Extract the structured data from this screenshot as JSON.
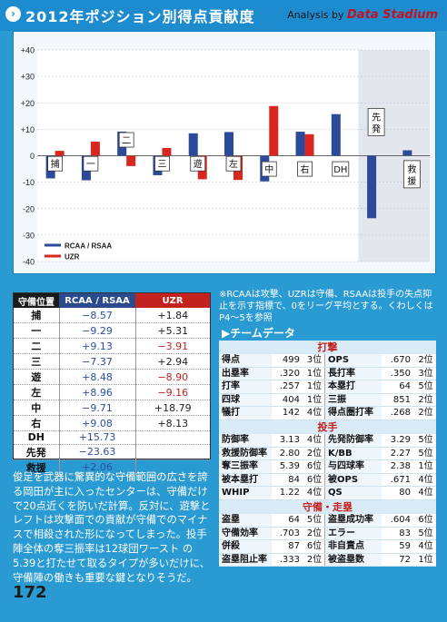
{
  "header": {
    "title": "2012年ポジション別得点貢献度",
    "brand_prefix": "Analysis by",
    "brand_name": "Data Stadium"
  },
  "chart_data": {
    "type": "bar",
    "categories": [
      "捕",
      "一",
      "二",
      "三",
      "遊",
      "左",
      "中",
      "右",
      "DH",
      "先発",
      "救援"
    ],
    "series": [
      {
        "name": "RCAA / RSAA",
        "color": "#2c4a9a",
        "values": [
          -8.57,
          -9.29,
          9.13,
          -7.37,
          8.48,
          8.96,
          -9.71,
          9.08,
          15.73,
          -23.63,
          2.06
        ]
      },
      {
        "name": "UZR",
        "color": "#d8271f",
        "values": [
          1.84,
          5.31,
          -3.91,
          2.94,
          -8.9,
          -9.16,
          18.79,
          8.13,
          null,
          null,
          null
        ]
      }
    ],
    "ylim": [
      -40,
      40
    ],
    "yticks": [
      "+40",
      "+30",
      "+20",
      "+10",
      "0",
      "-10",
      "-20",
      "-30",
      "-40"
    ],
    "grid": true,
    "legend": "bottom-left"
  },
  "table": {
    "headers": [
      "守備位置",
      "RCAA / RSAA",
      "UZR"
    ],
    "rows": [
      {
        "pos": "捕",
        "r": "−8.57",
        "u": "+1.84",
        "rneg": true,
        "uneg": false
      },
      {
        "pos": "一",
        "r": "−9.29",
        "u": "+5.31",
        "rneg": true,
        "uneg": false
      },
      {
        "pos": "二",
        "r": "+9.13",
        "u": "−3.91",
        "rneg": false,
        "uneg": true
      },
      {
        "pos": "三",
        "r": "−7.37",
        "u": "+2.94",
        "rneg": true,
        "uneg": false
      },
      {
        "pos": "遊",
        "r": "+8.48",
        "u": "−8.90",
        "rneg": false,
        "uneg": true
      },
      {
        "pos": "左",
        "r": "+8.96",
        "u": "−9.16",
        "rneg": false,
        "uneg": true
      },
      {
        "pos": "中",
        "r": "−9.71",
        "u": "+18.79",
        "rneg": true,
        "uneg": false
      },
      {
        "pos": "右",
        "r": "+9.08",
        "u": "+8.13",
        "rneg": false,
        "uneg": false
      },
      {
        "pos": "DH",
        "r": "+15.73",
        "u": "",
        "rneg": false,
        "uneg": false
      },
      {
        "pos": "先発",
        "r": "−23.63",
        "u": "",
        "rneg": true,
        "uneg": false
      },
      {
        "pos": "救援",
        "r": "+2.06",
        "u": "",
        "rneg": false,
        "uneg": false
      }
    ]
  },
  "note": "※RCAAは攻撃、UZRは守備、RSAAは投手の失点抑止を示す指標で、0をリーグ平均とする。くわしくはP4〜5を参照",
  "team_data": {
    "title": "▶チームデータ",
    "sections": [
      {
        "title": "打撃",
        "rows": [
          [
            "得点",
            "499",
            "3位",
            "OPS",
            ".670",
            "2位"
          ],
          [
            "出塁率",
            ".320",
            "1位",
            "長打率",
            ".350",
            "3位"
          ],
          [
            "打率",
            ".257",
            "1位",
            "本塁打",
            "64",
            "5位"
          ],
          [
            "四球",
            "404",
            "1位",
            "三振",
            "851",
            "2位"
          ],
          [
            "犠打",
            "142",
            "4位",
            "得点圏打率",
            ".268",
            "2位"
          ]
        ]
      },
      {
        "title": "投手",
        "rows": [
          [
            "防御率",
            "3.13",
            "4位",
            "先発防御率",
            "3.29",
            "5位"
          ],
          [
            "救援防御率",
            "2.80",
            "2位",
            "K/BB",
            "2.27",
            "5位"
          ],
          [
            "奪三振率",
            "5.39",
            "6位",
            "与四球率",
            "2.38",
            "1位"
          ],
          [
            "被本塁打",
            "84",
            "6位",
            "被OPS",
            ".671",
            "4位"
          ],
          [
            "WHIP",
            "1.22",
            "4位",
            "QS",
            "80",
            "4位"
          ]
        ]
      },
      {
        "title": "守備・走塁",
        "rows": [
          [
            "盗塁",
            "64",
            "5位",
            "盗塁成功率",
            ".604",
            "6位"
          ],
          [
            "守備効率",
            ".703",
            "2位",
            "エラー",
            "83",
            "5位"
          ],
          [
            "併殺",
            "87",
            "6位",
            "非自責点",
            "59",
            "4位"
          ],
          [
            "盗塁阻止率",
            ".333",
            "2位",
            "被盗塁数",
            "72",
            "1位"
          ]
        ]
      }
    ]
  },
  "comment": "俊足を武器に驚異的な守備範囲の広さを誇る岡田が主に入ったセンターは、守備だけで20点近くを防いだ計算。反対に、遊撃とレフトは攻撃面での貢献が守備でのマイナスで相殺された形になってしまった。投手陣全体の奪三振率は12球団ワースト の5.39と打たせて取るタイプが多いだけに、守備陣の働きも重要な鍵となりそうだ。",
  "page_number": "172"
}
